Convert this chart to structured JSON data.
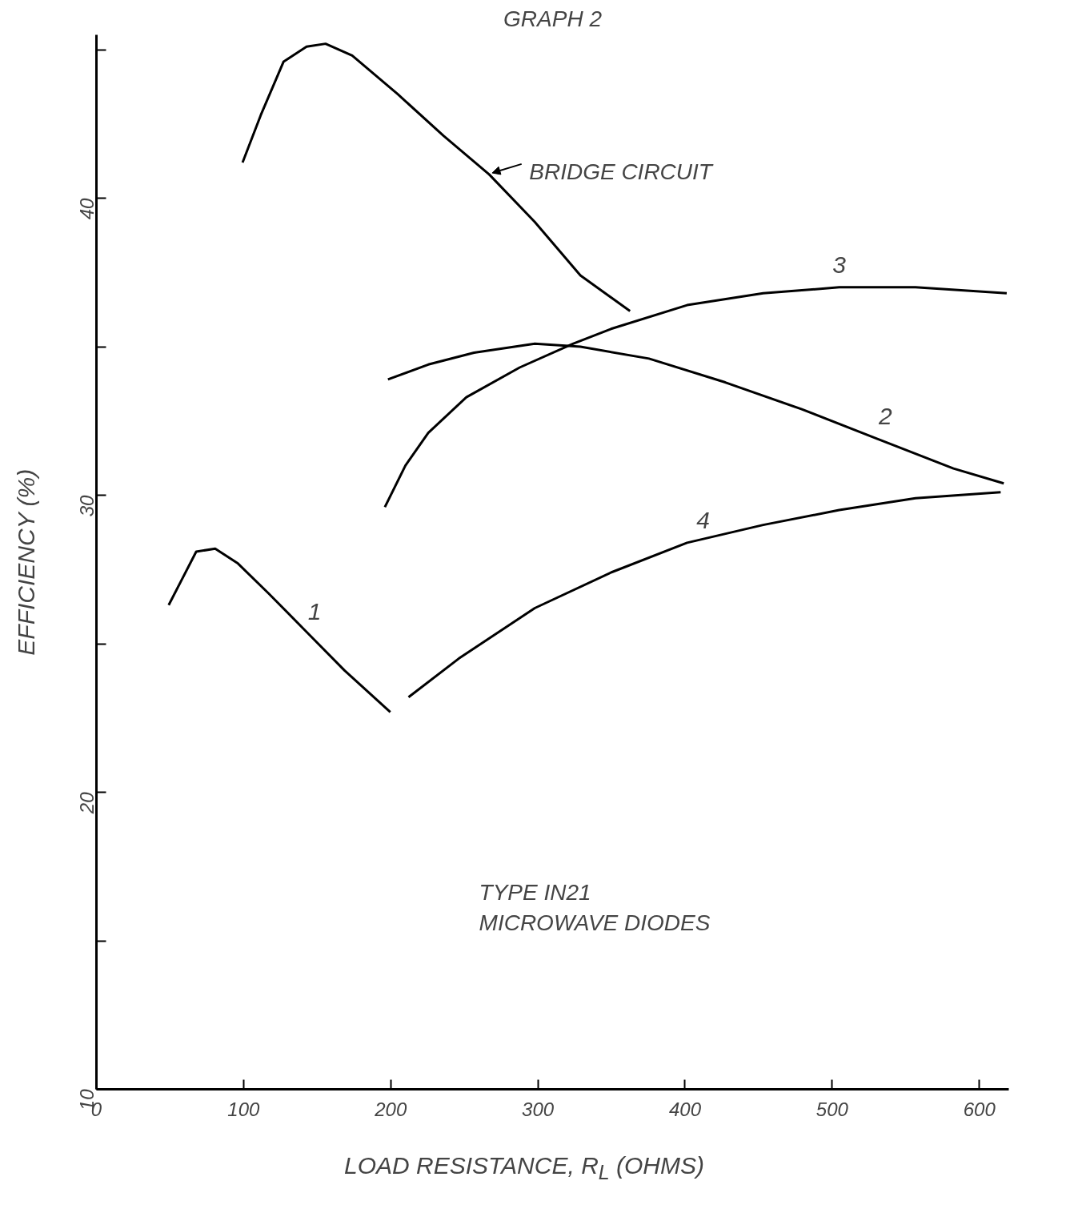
{
  "chart_data": {
    "type": "line",
    "title": "GRAPH 2",
    "xlabel": "LOAD RESISTANCE, R$_{L}$ (OHMS)",
    "ylabel": "EFFICIENCY (%)",
    "xlim": [
      0,
      620
    ],
    "ylim": [
      10,
      45.5
    ],
    "xticks": [
      0,
      100,
      200,
      300,
      400,
      500,
      600
    ],
    "yticks": [
      10,
      {
        "value": 15,
        "label": null
      },
      20,
      {
        "value": 25,
        "label": null
      },
      30,
      {
        "value": 35,
        "label": null
      },
      40,
      {
        "value": 45,
        "label": null
      }
    ],
    "grid": false,
    "marker": "none",
    "line_style": "solid",
    "series": [
      {
        "name": "BRIDGE CIRCUIT",
        "color": "#000000",
        "x": [
          99.3,
          111.7,
          127.2,
          142.8,
          155.7,
          173.8,
          204.8,
          235.9,
          266.9,
          297.9,
          328.9,
          362.6
        ],
        "values": [
          41.2,
          42.8,
          44.6,
          45.1,
          45.2,
          44.8,
          43.5,
          42.1,
          40.8,
          39.2,
          37.4,
          36.2
        ]
      },
      {
        "name": "1",
        "color": "#000000",
        "x": [
          49.1,
          57.4,
          67.8,
          80.7,
          96.2,
          116.9,
          142.8,
          168.6,
          199.7
        ],
        "values": [
          26.3,
          27.1,
          28.1,
          28.2,
          27.7,
          26.7,
          25.4,
          24.1,
          22.7
        ]
      },
      {
        "name": "2",
        "color": "#000000",
        "x": [
          198.1,
          225.5,
          256.6,
          297.9,
          328.9,
          375.5,
          427.3,
          479.0,
          530.7,
          582.4,
          616.6
        ],
        "values": [
          33.9,
          34.4,
          34.8,
          35.1,
          35.0,
          34.6,
          33.8,
          32.9,
          31.9,
          30.9,
          30.4
        ]
      },
      {
        "name": "3",
        "color": "#000000",
        "x": [
          196.0,
          210.0,
          225.5,
          251.4,
          287.6,
          323.8,
          349.7,
          401.4,
          453.1,
          504.8,
          556.6,
          618.6
        ],
        "values": [
          29.6,
          31.0,
          32.1,
          33.3,
          34.3,
          35.1,
          35.6,
          36.4,
          36.8,
          37.0,
          37.0,
          36.8
        ]
      },
      {
        "name": "4",
        "color": "#000000",
        "x": [
          212.1,
          246.2,
          297.9,
          349.7,
          401.4,
          453.1,
          504.8,
          556.6,
          614.5
        ],
        "values": [
          23.2,
          24.5,
          26.2,
          27.4,
          28.4,
          29.0,
          29.5,
          29.9,
          30.1
        ]
      }
    ],
    "annotations": [
      "TYPE IN21\nMICROWAVE DIODES"
    ]
  }
}
